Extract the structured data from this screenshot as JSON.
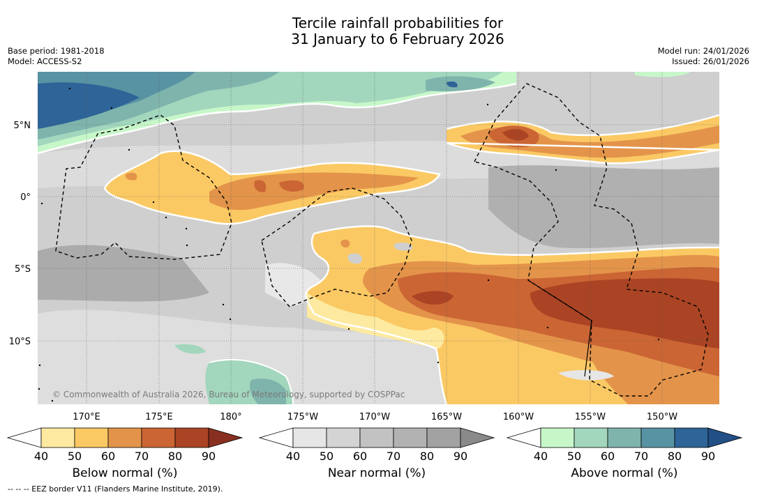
{
  "title": {
    "line1": "Tercile rainfall probabilities for",
    "line2": "31 January to 6 February 2026"
  },
  "meta": {
    "base_period": "Base period: 1981-2018",
    "model": "Model: ACCESS-S2",
    "model_run": "Model run: 24/01/2026",
    "issued": "Issued: 26/01/2026"
  },
  "map": {
    "lat_labels": [
      "5°N",
      "0°",
      "5°S",
      "10°S"
    ],
    "lon_labels": [
      "170°E",
      "175°E",
      "180°",
      "175°W",
      "170°W",
      "165°W",
      "160°W",
      "155°W",
      "150°W"
    ],
    "copyright": "© Commonwealth of Australia 2026, Bureau of Meteorology, supported by COSPPac"
  },
  "colorbars": [
    {
      "label": "Below normal (%)",
      "colors": [
        "#fdeaa0",
        "#fbc964",
        "#e3944a",
        "#cb6534",
        "#aa4424",
        "#883020"
      ],
      "ticks": [
        "40",
        "50",
        "60",
        "70",
        "80",
        "90"
      ]
    },
    {
      "label": "Near normal (%)",
      "colors": [
        "#e6e6e6",
        "#d4d4d4",
        "#c2c2c2",
        "#b2b2b2",
        "#a2a2a2",
        "#8a8a8a"
      ],
      "ticks": [
        "40",
        "50",
        "60",
        "70",
        "80",
        "90"
      ]
    },
    {
      "label": "Above normal (%)",
      "colors": [
        "#c7f7c9",
        "#a2d6bd",
        "#7fb4ad",
        "#5893a3",
        "#2e6497",
        "#224f86"
      ],
      "ticks": [
        "40",
        "50",
        "60",
        "70",
        "80",
        "90"
      ]
    }
  ],
  "footer": "--  --  -- EEZ border V11 (Flanders Marine Institute, 2019)."
}
